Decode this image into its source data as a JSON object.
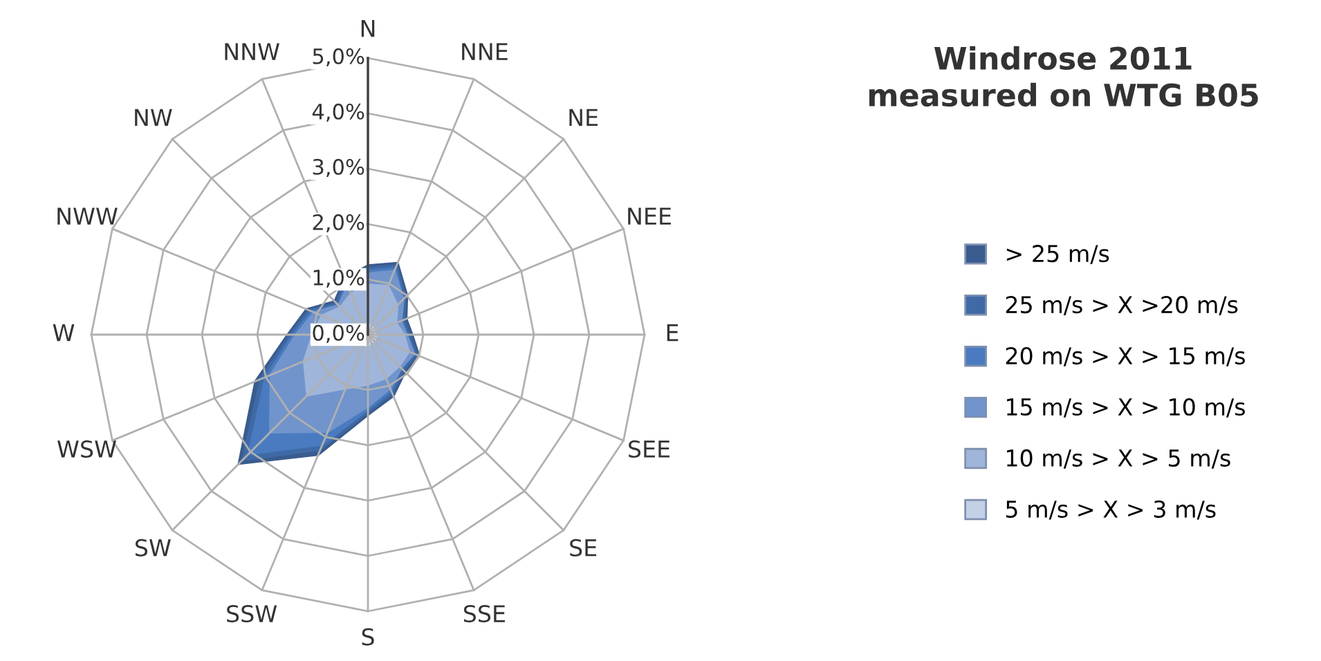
{
  "chart_data": {
    "type": "radar",
    "title": "Windrose 2011\nmeasured on WTG B05",
    "categories": [
      "N",
      "NNE",
      "NE",
      "NEE",
      "E",
      "SEE",
      "SE",
      "SSE",
      "S",
      "SSW",
      "SW",
      "WSW",
      "W",
      "NWW",
      "NW",
      "NNW"
    ],
    "ylim": [
      0,
      5
    ],
    "yticks": [
      {
        "value": 0,
        "label": "0,0%"
      },
      {
        "value": 1,
        "label": "1,0%"
      },
      {
        "value": 2,
        "label": "2,0%"
      },
      {
        "value": 3,
        "label": "3,0%"
      },
      {
        "value": 4,
        "label": "4,0%"
      },
      {
        "value": 5,
        "label": "5,0%"
      }
    ],
    "grid": true,
    "legend": "right",
    "series": [
      {
        "name": "> 25 m/s",
        "color": "#3a5c8f",
        "values": [
          1.25,
          1.4,
          1.0,
          0.75,
          0.8,
          1.0,
          0.95,
          1.2,
          1.45,
          2.35,
          3.3,
          2.2,
          1.45,
          1.2,
          0.85,
          1.1
        ]
      },
      {
        "name": "25 m/s > X >20 m/s",
        "color": "#3f6aa6",
        "values": [
          1.2,
          1.35,
          0.95,
          0.7,
          0.75,
          0.95,
          0.9,
          1.15,
          1.4,
          2.25,
          3.2,
          2.1,
          1.4,
          1.15,
          0.8,
          1.05
        ]
      },
      {
        "name": "20 m/s > X > 15 m/s",
        "color": "#4a7bc0",
        "values": [
          1.15,
          1.3,
          0.9,
          0.65,
          0.7,
          0.9,
          0.85,
          1.1,
          1.35,
          2.15,
          3.05,
          2.0,
          1.35,
          1.1,
          0.75,
          1.0
        ]
      },
      {
        "name": "15 m/s > X > 10 m/s",
        "color": "#7194cc",
        "values": [
          1.1,
          1.25,
          0.9,
          0.65,
          0.7,
          0.9,
          0.85,
          1.05,
          1.3,
          1.9,
          2.5,
          1.9,
          1.3,
          1.05,
          0.75,
          0.95
        ]
      },
      {
        "name": "10 m/s > X > 5 m/s",
        "color": "#a0b5da",
        "values": [
          0.9,
          0.95,
          0.75,
          0.55,
          0.65,
          0.8,
          0.8,
          0.85,
          0.9,
          1.05,
          1.55,
          1.25,
          1.0,
          0.9,
          0.7,
          0.8
        ]
      },
      {
        "name": "5 m/s > X > 3 m/s",
        "color": "#c4d0e6",
        "values": [
          0.2,
          0.15,
          0.15,
          0.1,
          0.15,
          0.15,
          0.15,
          0.15,
          0.2,
          0.2,
          0.2,
          0.15,
          0.15,
          0.1,
          0.1,
          0.15
        ]
      }
    ]
  }
}
